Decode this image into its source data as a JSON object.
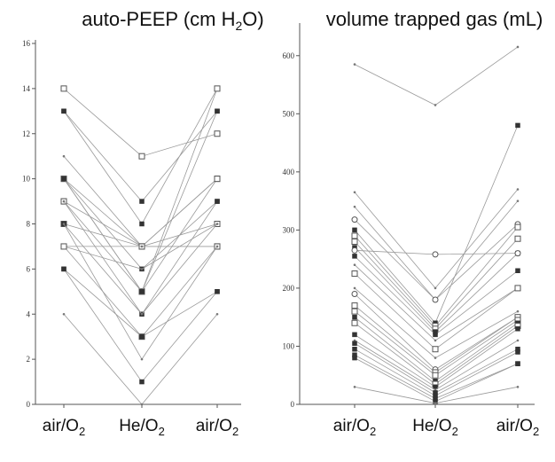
{
  "chart_data": [
    {
      "type": "line",
      "title_text": "auto-PEEP (cm H",
      "title_sub": "2",
      "title_end": "O)",
      "categories": [
        "air/O",
        "He/O",
        "air/O"
      ],
      "category_sub": "2",
      "ylim": [
        0,
        16
      ],
      "yticks": [
        "0",
        "2",
        "4",
        "6",
        "8",
        "10",
        "12",
        "14",
        "16"
      ],
      "grid": false,
      "legend": "none",
      "series": [
        {
          "marker": "square",
          "values": [
            14,
            11,
            12
          ]
        },
        {
          "marker": "filled",
          "values": [
            13,
            9,
            13
          ]
        },
        {
          "marker": "filled",
          "values": [
            13,
            8,
            14
          ]
        },
        {
          "marker": "none",
          "values": [
            11,
            7,
            10
          ]
        },
        {
          "marker": "square",
          "values": [
            10,
            7,
            10
          ]
        },
        {
          "marker": "filled",
          "values": [
            10,
            6,
            9
          ]
        },
        {
          "marker": "square",
          "values": [
            10,
            5,
            14
          ]
        },
        {
          "marker": "square",
          "values": [
            9,
            7,
            8
          ]
        },
        {
          "marker": "square",
          "values": [
            9,
            5,
            10
          ]
        },
        {
          "marker": "square",
          "values": [
            8,
            7,
            7
          ]
        },
        {
          "marker": "filled",
          "values": [
            8,
            4,
            9
          ]
        },
        {
          "marker": "none",
          "values": [
            7,
            7,
            7
          ]
        },
        {
          "marker": "none",
          "values": [
            7,
            6,
            8
          ]
        },
        {
          "marker": "square",
          "values": [
            7,
            3,
            7
          ]
        },
        {
          "marker": "filled",
          "values": [
            6,
            3,
            5
          ]
        },
        {
          "marker": "filled",
          "values": [
            6,
            1,
            5
          ]
        },
        {
          "marker": "none",
          "values": [
            4,
            0,
            4
          ]
        },
        {
          "marker": "filled",
          "values": [
            10,
            5,
            13
          ]
        },
        {
          "marker": "none",
          "values": [
            9,
            4,
            8
          ]
        },
        {
          "marker": "none",
          "values": [
            8,
            2,
            7
          ]
        }
      ]
    },
    {
      "type": "line",
      "title_text": "volume trapped gas (mL)",
      "categories": [
        "air/O",
        "He/O",
        "air/O"
      ],
      "category_sub": "2",
      "ylim": [
        0,
        650
      ],
      "yticks": [
        "0",
        "100",
        "200",
        "300",
        "400",
        "500",
        "600"
      ],
      "grid": false,
      "legend": "none",
      "series": [
        {
          "marker": "none",
          "values": [
            585,
            515,
            615
          ]
        },
        {
          "marker": "none",
          "values": [
            365,
            200,
            370
          ]
        },
        {
          "marker": "none",
          "values": [
            340,
            180,
            350
          ]
        },
        {
          "marker": "circle",
          "values": [
            318,
            180,
            310
          ]
        },
        {
          "marker": "filled",
          "values": [
            300,
            140,
            480
          ]
        },
        {
          "marker": "square",
          "values": [
            290,
            135,
            305
          ]
        },
        {
          "marker": "square",
          "values": [
            280,
            130,
            285
          ]
        },
        {
          "marker": "filled",
          "values": [
            270,
            125,
            260
          ]
        },
        {
          "marker": "circle",
          "values": [
            265,
            258,
            260
          ]
        },
        {
          "marker": "filled",
          "values": [
            255,
            120,
            230
          ]
        },
        {
          "marker": "none",
          "values": [
            240,
            110,
            200
          ]
        },
        {
          "marker": "square",
          "values": [
            225,
            95,
            200
          ]
        },
        {
          "marker": "none",
          "values": [
            200,
            80,
            160
          ]
        },
        {
          "marker": "circle",
          "values": [
            190,
            60,
            150
          ]
        },
        {
          "marker": "square",
          "values": [
            170,
            55,
            150
          ]
        },
        {
          "marker": "square",
          "values": [
            160,
            50,
            145
          ]
        },
        {
          "marker": "filled",
          "values": [
            150,
            40,
            140
          ]
        },
        {
          "marker": "square",
          "values": [
            140,
            35,
            135
          ]
        },
        {
          "marker": "filled",
          "values": [
            120,
            30,
            130
          ]
        },
        {
          "marker": "none",
          "values": [
            110,
            25,
            110
          ]
        },
        {
          "marker": "filled",
          "values": [
            105,
            20,
            95
          ]
        },
        {
          "marker": "filled",
          "values": [
            95,
            15,
            90
          ]
        },
        {
          "marker": "filled",
          "values": [
            85,
            10,
            70
          ]
        },
        {
          "marker": "filled",
          "values": [
            80,
            5,
            70
          ]
        },
        {
          "marker": "none",
          "values": [
            30,
            2,
            30
          ]
        }
      ]
    }
  ]
}
